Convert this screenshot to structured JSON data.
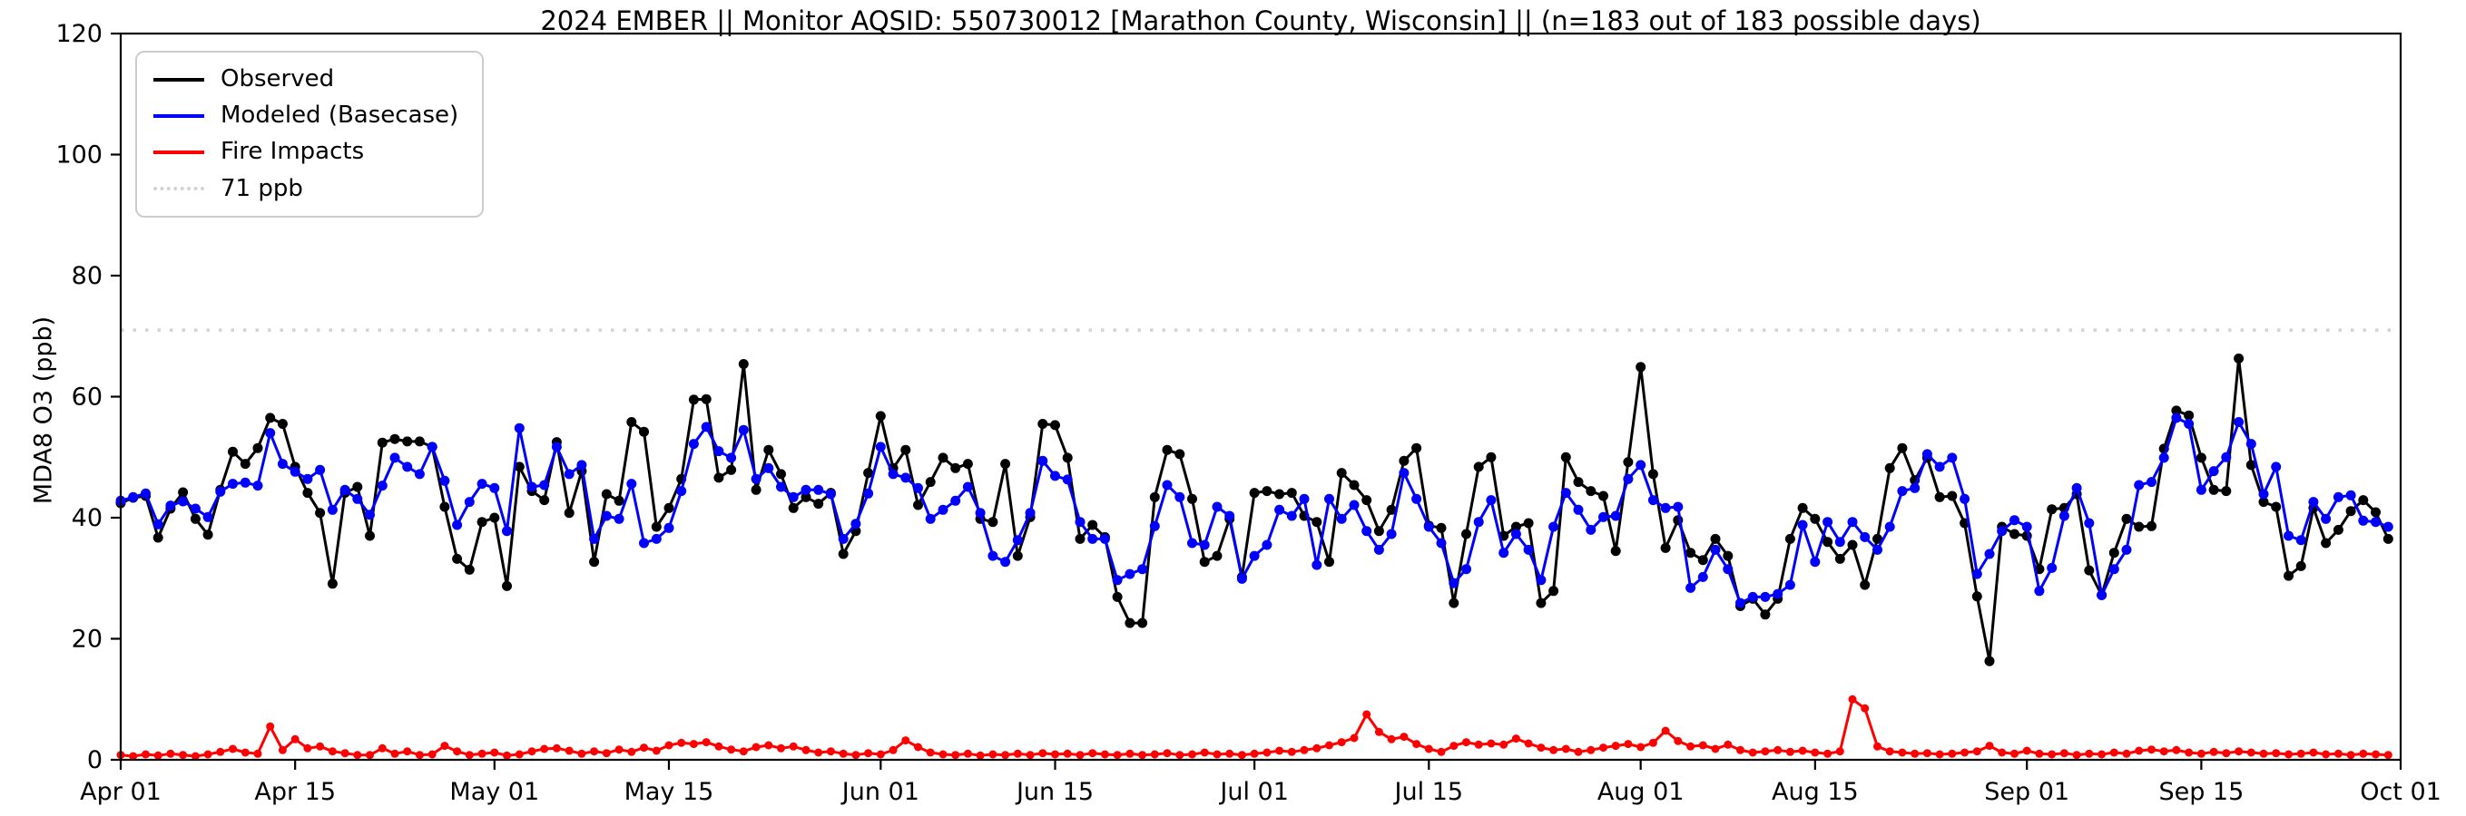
{
  "chart_data": {
    "type": "line",
    "title": "2024 EMBER || Monitor AQSID: 550730012 [Marathon County, Wisconsin] || (n=183 out of 183 possible days)",
    "ylabel": "MDA8 O3 (ppb)",
    "xlabel": "",
    "ylim": [
      0,
      120
    ],
    "x_range_days": 183,
    "x_start_label": "Apr 01",
    "x_end_label": "Oct 01",
    "grid": false,
    "legend_position": "upper-left",
    "yticks": [
      0,
      20,
      40,
      60,
      80,
      100,
      120
    ],
    "xticks": [
      {
        "label": "Apr 01",
        "day": 0
      },
      {
        "label": "Apr 15",
        "day": 14
      },
      {
        "label": "May 01",
        "day": 30
      },
      {
        "label": "May 15",
        "day": 44
      },
      {
        "label": "Jun 01",
        "day": 61
      },
      {
        "label": "Jun 15",
        "day": 75
      },
      {
        "label": "Jul 01",
        "day": 91
      },
      {
        "label": "Jul 15",
        "day": 105
      },
      {
        "label": "Aug 01",
        "day": 122
      },
      {
        "label": "Aug 15",
        "day": 136
      },
      {
        "label": "Sep 01",
        "day": 153
      },
      {
        "label": "Sep 15",
        "day": 167
      },
      {
        "label": "Oct 01",
        "day": 183
      }
    ],
    "threshold": {
      "label": "71 ppb",
      "value": 71,
      "color": "#d3d3d3"
    },
    "legend": [
      {
        "label": "Observed"
      },
      {
        "label": "Modeled (Basecase)"
      },
      {
        "label": "Fire Impacts"
      },
      {
        "label": "71 ppb"
      }
    ],
    "series": [
      {
        "name": "Observed",
        "color": "#000000",
        "values": [
          42.4,
          43.3,
          43.6,
          36.7,
          41.5,
          44.2,
          39.8,
          37.2,
          44.6,
          50.9,
          48.9,
          51.5,
          56.5,
          55.5,
          48.4,
          44.1,
          40.8,
          29.1,
          44.1,
          45.1,
          37,
          52.4,
          53,
          52.6,
          52.6,
          51.7,
          41.8,
          33.2,
          31.4,
          39.3,
          40,
          28.7,
          48.4,
          44.4,
          42.9,
          52.5,
          40.8,
          47.7,
          32.7,
          43.9,
          42.8,
          55.8,
          54.2,
          38.5,
          41.6,
          46.4,
          59.5,
          59.6,
          46.6,
          47.9,
          65.4,
          44.6,
          51.2,
          47.2,
          41.6,
          43.4,
          42.3,
          44.1,
          34,
          37.8,
          47.4,
          56.8,
          48.2,
          51.2,
          42.1,
          45.9,
          49.9,
          48.2,
          48.9,
          39.8,
          39.3,
          48.9,
          33.7,
          40.1,
          55.5,
          55.3,
          49.9,
          36.5,
          38.8,
          36.8,
          26.9,
          22.6,
          22.6,
          43.4,
          51.2,
          50.5,
          43.1,
          32.7,
          33.7,
          39.8,
          30.2,
          44.1,
          44.4,
          43.9,
          44.1,
          40.3,
          39.3,
          32.7,
          47.4,
          45.4,
          42.9,
          37.8,
          41.3,
          49.4,
          51.5,
          38.7,
          38.3,
          25.9,
          37.3,
          48.4,
          50,
          37,
          38.5,
          39.1,
          25.9,
          27.9,
          50,
          45.9,
          44.4,
          43.6,
          34.5,
          49.2,
          64.9,
          47.2,
          35,
          39.6,
          34.2,
          33,
          36.5,
          33.7,
          25.4,
          26.6,
          24,
          26.6,
          36.5,
          41.6,
          39.8,
          36,
          33.2,
          35.5,
          28.9,
          36.5,
          48.2,
          51.5,
          46.2,
          49.9,
          43.4,
          43.6,
          39.1,
          27,
          16.3,
          38.5,
          37.3,
          37,
          31.5,
          41.4,
          41.6,
          43.9,
          31.3,
          27.2,
          34.2,
          39.8,
          38.5,
          38.6,
          51.4,
          57.7,
          56.9,
          49.9,
          44.6,
          44.4,
          66.3,
          48.7,
          42.6,
          41.8,
          30.4,
          32,
          41.6,
          35.8,
          38,
          41.1,
          42.9,
          40.9,
          36.5
        ]
      },
      {
        "name": "Modeled (Basecase)",
        "color": "#0000ff",
        "values": [
          42.8,
          43.4,
          44,
          38.9,
          42,
          42.7,
          41.5,
          40.1,
          44.3,
          45.6,
          45.8,
          45.3,
          54,
          48.9,
          47.6,
          46.4,
          47.9,
          41.3,
          44.6,
          43.1,
          40.5,
          45.3,
          49.9,
          48.4,
          47.2,
          51.7,
          46.1,
          38.8,
          42.6,
          45.6,
          44.9,
          37.8,
          54.8,
          45.1,
          45.4,
          51.7,
          47.2,
          48.7,
          36.5,
          40.3,
          39.8,
          45.6,
          35.8,
          36.5,
          38.3,
          44.4,
          52.2,
          55,
          51,
          49.9,
          54.5,
          46.4,
          48.2,
          45.1,
          43.4,
          44.6,
          44.6,
          43.9,
          36.5,
          39,
          44,
          51.7,
          47.2,
          46.6,
          44.9,
          39.8,
          41.3,
          42.8,
          45.1,
          40.8,
          33.7,
          32.7,
          36.3,
          40.8,
          49.4,
          46.9,
          46.3,
          39.3,
          36.5,
          36.5,
          29.7,
          30.7,
          31.5,
          38.6,
          45.4,
          43.4,
          35.8,
          35.5,
          41.8,
          40.3,
          29.9,
          33.7,
          35.5,
          41.3,
          40.3,
          43.1,
          32.2,
          43.1,
          39.8,
          42.1,
          37.8,
          34.7,
          37.3,
          47.4,
          43.1,
          38.5,
          35.8,
          29.2,
          31.5,
          39.3,
          42.9,
          34.2,
          37.3,
          34.7,
          29.7,
          38.5,
          44.1,
          41.3,
          38,
          40.1,
          40.3,
          46.4,
          48.7,
          42.9,
          41.6,
          41.8,
          28.4,
          30.2,
          34.7,
          31.5,
          25.9,
          26.9,
          26.9,
          27.4,
          28.9,
          38.8,
          32.7,
          39.3,
          36,
          39.3,
          36.8,
          34.7,
          38.5,
          44.4,
          44.9,
          50.5,
          48.4,
          49.9,
          43.1,
          30.7,
          34,
          37.8,
          39.6,
          38.5,
          27.9,
          31.7,
          40.3,
          44.9,
          39.1,
          27.2,
          31.5,
          34.7,
          45.4,
          45.9,
          49.9,
          56.5,
          55.5,
          44.6,
          47.7,
          50,
          55.8,
          52.2,
          43.9,
          48.4,
          37,
          36.3,
          42.6,
          39.8,
          43.4,
          43.7,
          39.5,
          39.3,
          38.5
        ]
      },
      {
        "name": "Fire Impacts",
        "color": "#ff0000",
        "values": [
          0.8,
          0.6,
          0.9,
          0.7,
          1,
          0.8,
          0.6,
          0.9,
          1.3,
          1.8,
          1.2,
          1,
          5.5,
          1.6,
          3.4,
          1.9,
          2.2,
          1.4,
          1.1,
          0.8,
          0.8,
          1.9,
          1,
          1.4,
          0.8,
          0.9,
          2.3,
          1.4,
          0.8,
          1,
          1.2,
          0.7,
          0.9,
          1.4,
          1.8,
          1.9,
          1.5,
          1,
          1.4,
          1.1,
          1.7,
          1.3,
          2,
          1.5,
          2.4,
          2.8,
          2.6,
          2.9,
          2.2,
          1.7,
          1.4,
          2.1,
          2.4,
          1.9,
          2.2,
          1.6,
          1.2,
          1.4,
          1,
          0.8,
          1.1,
          0.9,
          1.6,
          3.2,
          2.1,
          1.2,
          0.9,
          0.8,
          1,
          0.7,
          0.9,
          0.8,
          1,
          0.8,
          1.1,
          0.9,
          1,
          0.8,
          1.1,
          0.9,
          0.8,
          1,
          0.8,
          0.9,
          1.1,
          0.8,
          0.9,
          1.2,
          0.9,
          1,
          0.8,
          1,
          1.2,
          1.5,
          1.3,
          1.6,
          1.9,
          2.4,
          2.9,
          3.6,
          7.5,
          4.6,
          3.4,
          3.8,
          2.6,
          1.8,
          1.3,
          2.3,
          2.9,
          2.5,
          2.7,
          2.5,
          3.5,
          2.7,
          2,
          1.6,
          1.8,
          1.3,
          1.6,
          2,
          2.3,
          2.6,
          2.1,
          2.8,
          4.8,
          3.1,
          2.2,
          2.4,
          1.8,
          2.5,
          1.6,
          1.2,
          1.4,
          1.6,
          1.3,
          1.5,
          1.2,
          1,
          1.4,
          10,
          8.5,
          2.2,
          1.4,
          1.2,
          1,
          1.1,
          0.9,
          1,
          1.2,
          1.4,
          2.3,
          1.2,
          1,
          1.5,
          1,
          0.9,
          1.1,
          0.8,
          1,
          0.9,
          1.2,
          1,
          1.5,
          1.7,
          1.4,
          1.6,
          1.2,
          1,
          1.3,
          1.1,
          1.4,
          1.2,
          1,
          1.1,
          0.9,
          1,
          1.2,
          0.9,
          1,
          0.8,
          1,
          0.9,
          0.8
        ]
      }
    ]
  }
}
